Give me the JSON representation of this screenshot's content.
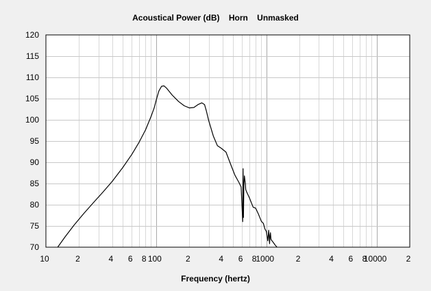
{
  "chart_data": {
    "type": "line",
    "title": "Acoustical Power (dB)    Horn    Unmasked",
    "xlabel": "Frequency (hertz)",
    "ylabel": "",
    "xscale": "log",
    "xlim": [
      10,
      20000
    ],
    "ylim": [
      70,
      120
    ],
    "yticks": [
      70,
      75,
      80,
      85,
      90,
      95,
      100,
      105,
      110,
      115,
      120
    ],
    "xtick_labels": [
      {
        "value": 10,
        "label": "10"
      },
      {
        "value": 20,
        "label": "2"
      },
      {
        "value": 40,
        "label": "4"
      },
      {
        "value": 60,
        "label": "6"
      },
      {
        "value": 80,
        "label": "8"
      },
      {
        "value": 100,
        "label": "100"
      },
      {
        "value": 200,
        "label": "2"
      },
      {
        "value": 400,
        "label": "4"
      },
      {
        "value": 600,
        "label": "6"
      },
      {
        "value": 800,
        "label": "8"
      },
      {
        "value": 1000,
        "label": "1000"
      },
      {
        "value": 2000,
        "label": "2"
      },
      {
        "value": 4000,
        "label": "4"
      },
      {
        "value": 6000,
        "label": "6"
      },
      {
        "value": 8000,
        "label": "8"
      },
      {
        "value": 10000,
        "label": "10000"
      },
      {
        "value": 20000,
        "label": "2"
      }
    ],
    "grid": true,
    "series": [
      {
        "color": "#000000",
        "x": [
          12.8,
          15,
          18,
          22,
          27,
          33,
          40,
          50,
          60,
          70,
          80,
          90,
          96,
          100,
          106,
          112,
          118,
          125,
          140,
          160,
          180,
          200,
          220,
          240,
          260,
          275,
          285,
          300,
          330,
          360,
          390,
          430,
          480,
          520,
          560,
          590,
          610,
          615,
          620,
          625,
          632,
          640,
          645,
          650,
          660,
          700,
          760,
          800,
          850,
          900,
          940,
          970,
          1000,
          1030,
          1050,
          1070,
          1080,
          1090,
          1100,
          1110,
          1150,
          1200,
          1250
        ],
        "y": [
          70,
          72.5,
          75.2,
          77.9,
          80.5,
          83,
          85.5,
          88.8,
          91.8,
          94.7,
          97.6,
          100.8,
          102.8,
          104.6,
          106.8,
          107.9,
          108,
          107.4,
          105.8,
          104.3,
          103.3,
          102.8,
          102.9,
          103.6,
          104,
          103.6,
          102.2,
          99.8,
          96.2,
          93.9,
          93.3,
          92.4,
          89.2,
          86.9,
          85.4,
          84.2,
          76,
          88.5,
          77,
          84.5,
          86.8,
          85.7,
          85,
          83.6,
          83.1,
          81.7,
          79.4,
          79.2,
          77.7,
          76.1,
          75.6,
          74.3,
          73.7,
          71.5,
          74,
          70.8,
          72.8,
          73.4,
          71.9,
          71.7,
          71.2,
          70.5,
          70
        ]
      }
    ]
  }
}
